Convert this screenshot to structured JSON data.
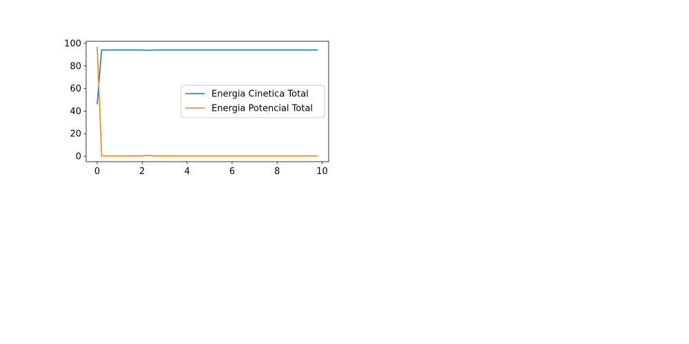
{
  "chart_data": {
    "type": "line",
    "title": "",
    "xlabel": "",
    "ylabel": "",
    "xlim": [
      -0.49,
      10.29
    ],
    "ylim": [
      -4.85,
      101.85
    ],
    "x_ticks": [
      0,
      2,
      4,
      6,
      8,
      10
    ],
    "y_ticks": [
      0,
      20,
      40,
      60,
      80,
      100
    ],
    "grid": false,
    "legend_position": "center-right",
    "series": [
      {
        "name": "Energia Cinetica Total",
        "color": "#1f77b4",
        "x": [
          0,
          0.2,
          0.4,
          0.6,
          0.8,
          1.0,
          1.2,
          1.4,
          1.6,
          1.8,
          2.0,
          2.2,
          2.4,
          2.6,
          2.8,
          3.0,
          4.0,
          5.0,
          6.0,
          7.0,
          8.0,
          9.0,
          9.8
        ],
        "y": [
          46,
          94.2,
          94.2,
          94.2,
          94.2,
          94.2,
          94.2,
          94.2,
          94.2,
          94.2,
          94.2,
          93.8,
          94.0,
          94.2,
          94.2,
          94.2,
          94.2,
          94.2,
          94.2,
          94.2,
          94.2,
          94.2,
          94.2
        ]
      },
      {
        "name": "Energia Potencial Total",
        "color": "#ff7f0e",
        "x": [
          0,
          0.2,
          0.4,
          0.6,
          0.8,
          1.0,
          1.2,
          1.4,
          1.6,
          1.8,
          2.0,
          2.2,
          2.4,
          2.6,
          2.8,
          3.0,
          4.0,
          5.0,
          6.0,
          7.0,
          8.0,
          9.0,
          9.8
        ],
        "y": [
          97,
          0.3,
          0.3,
          0.3,
          0.3,
          0.3,
          0.3,
          0.3,
          0.3,
          0.3,
          0.4,
          0.8,
          0.5,
          0.3,
          0.3,
          0.3,
          0.3,
          0.3,
          0.3,
          0.3,
          0.3,
          0.3,
          0.3
        ]
      }
    ]
  }
}
